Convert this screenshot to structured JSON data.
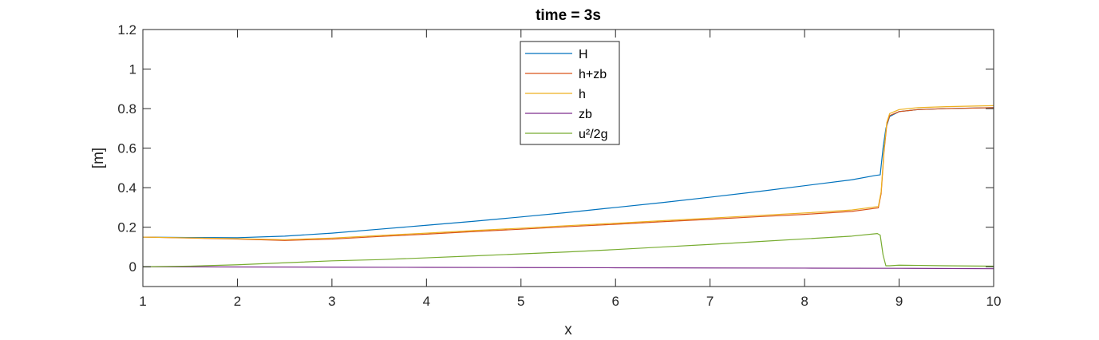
{
  "chart_data": {
    "type": "line",
    "title": "time = 3s",
    "xlabel": "x",
    "ylabel": "[m]",
    "xlim": [
      1,
      10
    ],
    "ylim": [
      -0.1,
      1.2
    ],
    "xticks": [
      "1",
      "2",
      "3",
      "4",
      "5",
      "6",
      "7",
      "8",
      "9",
      "10"
    ],
    "yticks": [
      "0",
      "0.2",
      "0.4",
      "0.6",
      "0.8",
      "1",
      "1.2"
    ],
    "ytick_values": [
      0,
      0.2,
      0.4,
      0.6,
      0.8,
      1.0,
      1.2
    ],
    "xtick_values": [
      1,
      2,
      3,
      4,
      5,
      6,
      7,
      8,
      9,
      10
    ],
    "grid": false,
    "legend_position": "top-center",
    "series": [
      {
        "name": "H",
        "color": "#0072BD",
        "x": [
          1,
          1.5,
          2,
          2.5,
          3,
          3.5,
          4,
          4.5,
          5,
          5.5,
          6,
          6.5,
          7,
          7.5,
          8,
          8.5,
          8.75,
          8.8,
          8.83,
          8.86,
          8.9,
          9.0,
          9.2,
          9.5,
          10
        ],
        "y": [
          0.15,
          0.148,
          0.147,
          0.155,
          0.17,
          0.19,
          0.21,
          0.23,
          0.252,
          0.275,
          0.3,
          0.325,
          0.352,
          0.38,
          0.41,
          0.44,
          0.462,
          0.465,
          0.6,
          0.7,
          0.76,
          0.785,
          0.795,
          0.8,
          0.805
        ]
      },
      {
        "name": "h+zb",
        "color": "#D95319",
        "x": [
          1,
          1.5,
          2,
          2.5,
          3,
          3.5,
          4,
          4.5,
          5,
          5.5,
          6,
          6.5,
          7,
          7.5,
          8,
          8.5,
          8.78,
          8.81,
          8.84,
          8.87,
          8.9,
          9.0,
          9.2,
          9.5,
          10
        ],
        "y": [
          0.15,
          0.145,
          0.14,
          0.133,
          0.14,
          0.153,
          0.165,
          0.178,
          0.19,
          0.203,
          0.215,
          0.228,
          0.24,
          0.253,
          0.265,
          0.28,
          0.298,
          0.37,
          0.58,
          0.72,
          0.765,
          0.785,
          0.795,
          0.8,
          0.805
        ]
      },
      {
        "name": "h",
        "color": "#EDB120",
        "x": [
          1,
          1.5,
          2,
          2.5,
          3,
          3.5,
          4,
          4.5,
          5,
          5.5,
          6,
          6.5,
          7,
          7.5,
          8,
          8.5,
          8.78,
          8.81,
          8.84,
          8.87,
          8.9,
          9.0,
          9.2,
          9.5,
          10
        ],
        "y": [
          0.15,
          0.146,
          0.142,
          0.137,
          0.145,
          0.158,
          0.17,
          0.183,
          0.195,
          0.208,
          0.22,
          0.233,
          0.246,
          0.259,
          0.272,
          0.287,
          0.305,
          0.38,
          0.59,
          0.73,
          0.775,
          0.795,
          0.805,
          0.81,
          0.815
        ]
      },
      {
        "name": "zb",
        "color": "#7E2F8E",
        "x": [
          1,
          2,
          3,
          4,
          5,
          6,
          7,
          8,
          9,
          10
        ],
        "y": [
          0,
          -0.001,
          -0.002,
          -0.003,
          -0.004,
          -0.005,
          -0.006,
          -0.007,
          -0.008,
          -0.01
        ]
      },
      {
        "name": "u²/2g",
        "color": "#77AC30",
        "x": [
          1,
          1.5,
          2,
          2.5,
          3,
          3.5,
          4,
          4.5,
          5,
          5.5,
          6,
          6.5,
          7,
          7.5,
          8,
          8.5,
          8.77,
          8.8,
          8.83,
          8.86,
          8.9,
          9.0,
          9.5,
          10
        ],
        "y": [
          0,
          0.003,
          0.01,
          0.02,
          0.03,
          0.036,
          0.045,
          0.055,
          0.065,
          0.075,
          0.087,
          0.1,
          0.113,
          0.127,
          0.141,
          0.155,
          0.168,
          0.16,
          0.06,
          0.005,
          0.005,
          0.008,
          0.005,
          0.003
        ]
      }
    ]
  }
}
